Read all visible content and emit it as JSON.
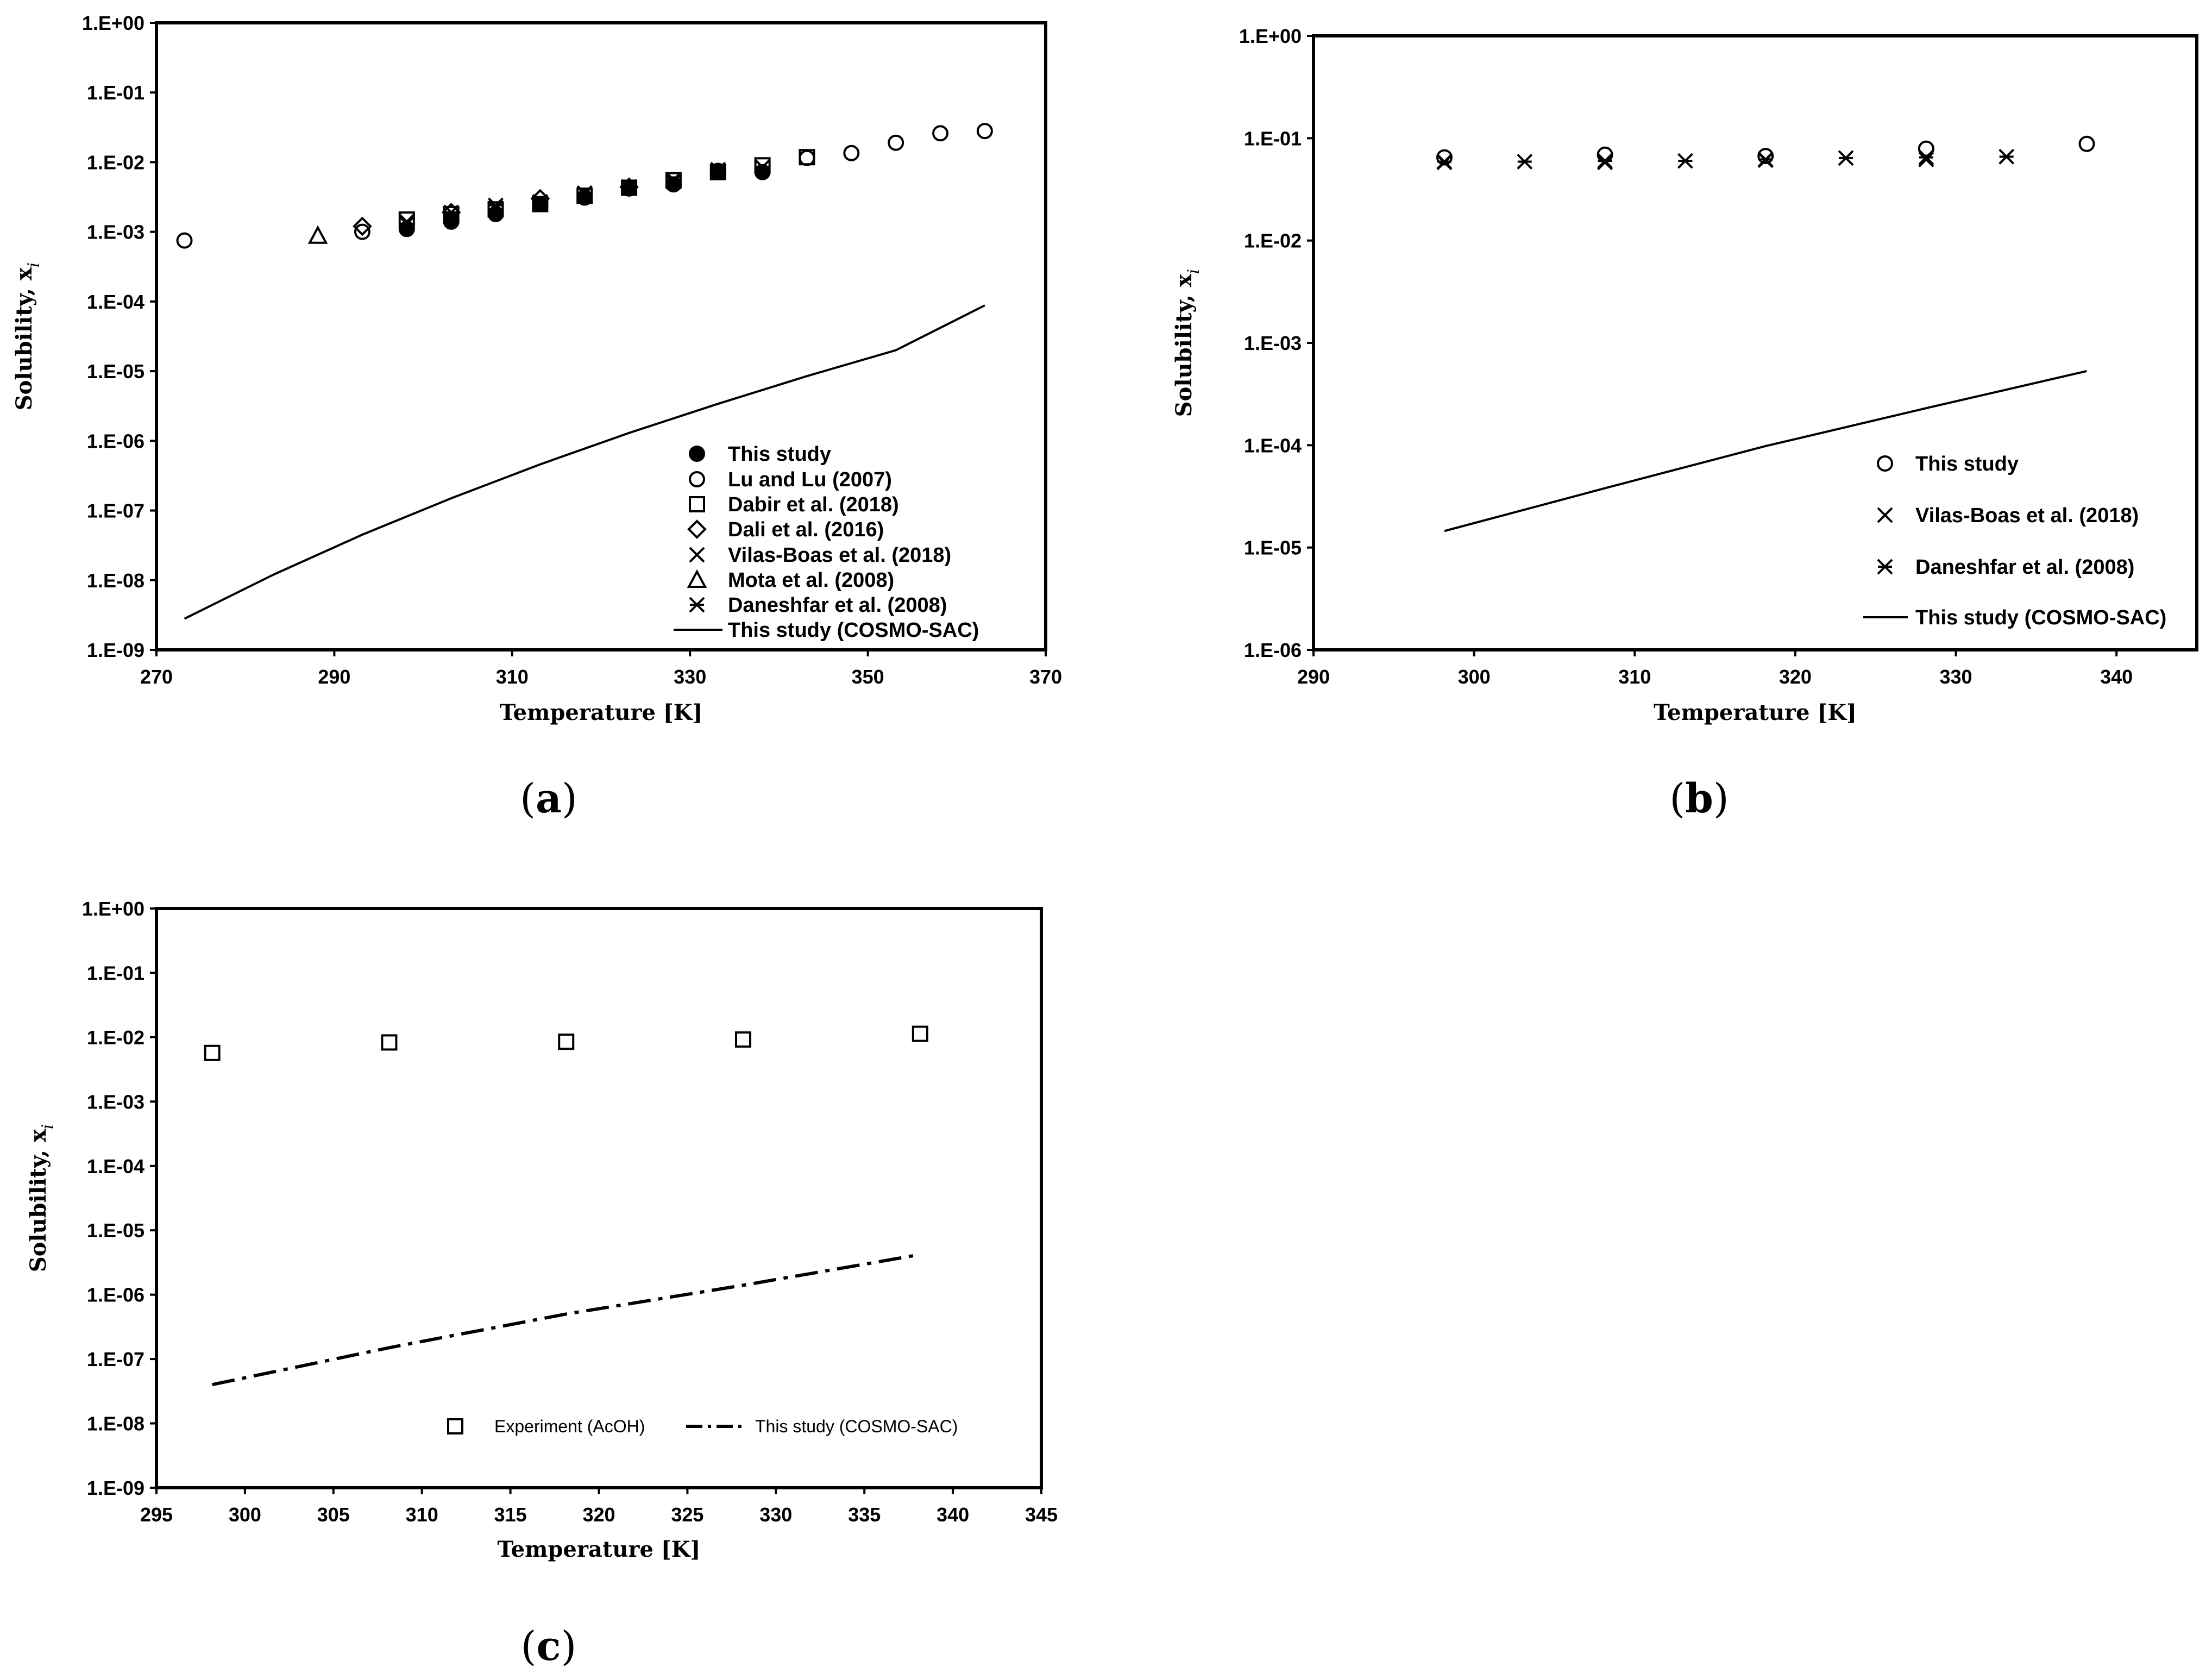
{
  "chart_data": [
    {
      "type": "scatter",
      "caption_letter": "a",
      "caption_prefix": "(",
      "caption_suffix": ")",
      "xlabel": "Temperature [K]",
      "ylabel": "Solubility, x",
      "ylabel_sub": "i",
      "xlim": [
        270,
        370
      ],
      "xticks": [
        270,
        290,
        310,
        330,
        350,
        370
      ],
      "yscale": "log",
      "ylim": [
        1e-09,
        1
      ],
      "ytick_labels": [
        "1.E+00",
        "1.E-01",
        "1.E-02",
        "1.E-03",
        "1.E-04",
        "1.E-05",
        "1.E-06",
        "1.E-07",
        "1.E-08",
        "1.E-09"
      ],
      "legend_position": "bottom-right",
      "series": [
        {
          "name": "This study",
          "marker": "filled-circle",
          "x": [
            298.15,
            303.15,
            308.15,
            313.15,
            318.15,
            323.15,
            328.15,
            333.15,
            338.15
          ],
          "y": [
            0.0011,
            0.0015,
            0.0018,
            0.0025,
            0.0031,
            0.0042,
            0.0048,
            0.0075,
            0.0072
          ]
        },
        {
          "name": "Lu and Lu (2007)",
          "marker": "circle",
          "x": [
            273.15,
            293.15,
            303.15,
            313.15,
            323.15,
            333.15,
            343.15,
            348.15,
            353.15,
            358.15,
            363.15
          ],
          "y": [
            0.00075,
            0.001,
            0.0014,
            0.0025,
            0.0042,
            0.0072,
            0.0115,
            0.0135,
            0.019,
            0.026,
            0.028
          ]
        },
        {
          "name": "Dabir et al. (2018)",
          "marker": "square",
          "x": [
            298.15,
            303.15,
            308.15,
            313.15,
            318.15,
            323.15,
            328.15,
            333.15,
            338.15,
            343.15
          ],
          "y": [
            0.0015,
            0.0018,
            0.0021,
            0.0025,
            0.0033,
            0.0043,
            0.0055,
            0.0072,
            0.009,
            0.0118
          ]
        },
        {
          "name": "Dali et al. (2016)",
          "marker": "diamond",
          "x": [
            293.15,
            303.15,
            313.15,
            323.15
          ],
          "y": [
            0.0012,
            0.0019,
            0.003,
            0.0044
          ]
        },
        {
          "name": "Vilas-Boas et al. (2018)",
          "marker": "x",
          "x": [
            298.15,
            308.15,
            318.15,
            328.15,
            338.15
          ],
          "y": [
            0.0014,
            0.0022,
            0.0035,
            0.0052,
            0.0085
          ]
        },
        {
          "name": "Mota et al. (2008)",
          "marker": "triangle",
          "x": [
            288.15
          ],
          "y": [
            0.00088
          ]
        },
        {
          "name": "Daneshfar et al. (2008)",
          "marker": "asterisk",
          "x": [
            298.15,
            303.15,
            308.15,
            313.15,
            318.15,
            323.15,
            328.15,
            333.15,
            338.15
          ],
          "y": [
            0.0013,
            0.0019,
            0.0024,
            0.0027,
            0.0036,
            0.0044,
            0.0056,
            0.0078,
            0.0085
          ]
        },
        {
          "name": "This study (COSMO-SAC)",
          "marker": "line",
          "x": [
            273.15,
            283.15,
            293.15,
            303.15,
            313.15,
            323.15,
            333.15,
            343.15,
            353.15,
            363.15
          ],
          "y": [
            2.8e-09,
            1.2e-08,
            4.5e-08,
            1.5e-07,
            4.6e-07,
            1.3e-06,
            3.4e-06,
            8.5e-06,
            2e-05,
            8.8e-05
          ]
        }
      ]
    },
    {
      "type": "scatter",
      "caption_letter": "b",
      "caption_prefix": "(",
      "caption_suffix": ")",
      "xlabel": "Temperature [K]",
      "ylabel": "Solubility, x",
      "ylabel_sub": "i",
      "xlim": [
        290,
        345
      ],
      "xticks": [
        290,
        300,
        310,
        320,
        330,
        340
      ],
      "yscale": "log",
      "ylim": [
        1e-06,
        1
      ],
      "ytick_labels": [
        "1.E+00",
        "1.E-01",
        "1.E-02",
        "1.E-03",
        "1.E-04",
        "1.E-05",
        "1.E-06"
      ],
      "legend_position": "bottom-right",
      "series": [
        {
          "name": "This study",
          "marker": "circle",
          "x": [
            298.15,
            308.15,
            318.15,
            328.15,
            338.15
          ],
          "y": [
            0.065,
            0.069,
            0.067,
            0.079,
            0.088
          ]
        },
        {
          "name": "Vilas-Boas et al. (2018)",
          "marker": "x",
          "x": [
            298.15,
            308.15,
            318.15,
            328.15
          ],
          "y": [
            0.058,
            0.058,
            0.061,
            0.062
          ]
        },
        {
          "name": "Daneshfar et al. (2008)",
          "marker": "asterisk",
          "x": [
            298.15,
            303.15,
            308.15,
            313.15,
            318.15,
            323.15,
            328.15,
            333.15
          ],
          "y": [
            0.059,
            0.059,
            0.06,
            0.06,
            0.062,
            0.064,
            0.065,
            0.066
          ]
        },
        {
          "name": "This study (COSMO-SAC)",
          "marker": "line",
          "x": [
            298.15,
            308.15,
            318.15,
            328.15,
            338.15
          ],
          "y": [
            1.45e-05,
            3.8e-05,
            9.8e-05,
            0.00023,
            0.00053
          ]
        }
      ]
    },
    {
      "type": "scatter",
      "caption_letter": "c",
      "caption_prefix": "(",
      "caption_suffix": ")",
      "xlabel": "Temperature [K]",
      "ylabel": "Solubility, x",
      "ylabel_sub": "i",
      "xlim": [
        295,
        345
      ],
      "xticks": [
        295,
        300,
        305,
        310,
        315,
        320,
        325,
        330,
        335,
        340,
        345
      ],
      "yscale": "log",
      "ylim": [
        1e-09,
        1
      ],
      "ytick_labels": [
        "1.E+00",
        "1.E-01",
        "1.E-02",
        "1.E-03",
        "1.E-04",
        "1.E-05",
        "1.E-06",
        "1.E-07",
        "1.E-08",
        "1.E-09"
      ],
      "legend_position": "bottom-right",
      "series": [
        {
          "name": "Experiment (AcOH)",
          "marker": "square",
          "x": [
            298.15,
            308.15,
            318.15,
            328.15,
            338.15
          ],
          "y": [
            0.0057,
            0.0083,
            0.0085,
            0.0092,
            0.0113
          ]
        },
        {
          "name": "This study (COSMO-SAC)",
          "marker": "dashdot",
          "x": [
            298.15,
            308.15,
            318.15,
            328.15,
            338.15
          ],
          "y": [
            4e-08,
            1.5e-07,
            5e-07,
            1.4e-06,
            4.2e-06
          ]
        }
      ]
    }
  ]
}
